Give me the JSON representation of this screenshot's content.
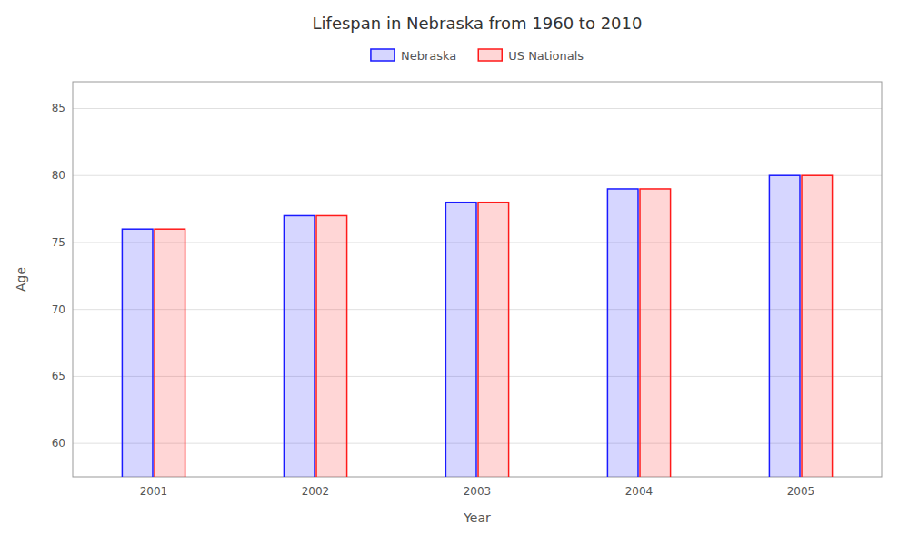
{
  "chart_data": {
    "type": "bar",
    "title": "Lifespan in Nebraska from 1960 to 2010",
    "xlabel": "Year",
    "ylabel": "Age",
    "categories": [
      "2001",
      "2002",
      "2003",
      "2004",
      "2005"
    ],
    "series": [
      {
        "name": "Nebraska",
        "color": "#1a1aff",
        "values": [
          76,
          77,
          78,
          79,
          80
        ]
      },
      {
        "name": "US Nationals",
        "color": "#ff1a1a",
        "values": [
          76,
          77,
          78,
          79,
          80
        ]
      }
    ],
    "ylim": [
      57.5,
      87
    ],
    "yticks": [
      60,
      65,
      70,
      75,
      80,
      85
    ],
    "grid": true,
    "legend": "top"
  }
}
